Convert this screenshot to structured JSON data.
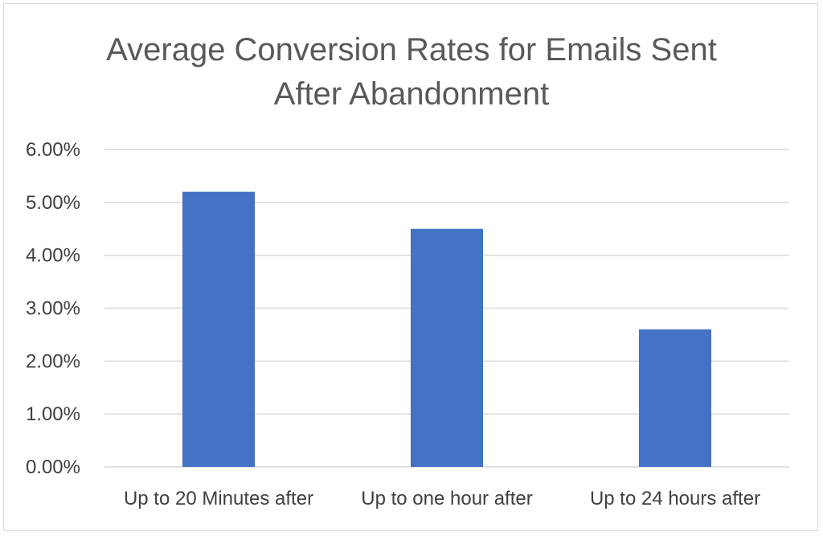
{
  "chart_data": {
    "type": "bar",
    "title_lines": [
      "Average Conversion Rates for Emails Sent",
      "After Abandonment"
    ],
    "xlabel": "",
    "ylabel": "",
    "categories": [
      "Up to 20 Minutes after",
      "Up to one hour after",
      "Up to 24 hours after"
    ],
    "values": [
      5.2,
      4.5,
      2.6
    ],
    "ylim": [
      0,
      6
    ],
    "yticks": [
      {
        "value": 0,
        "label": "0.00%"
      },
      {
        "value": 1,
        "label": "1.00%"
      },
      {
        "value": 2,
        "label": "2.00%"
      },
      {
        "value": 3,
        "label": "3.00%"
      },
      {
        "value": 4,
        "label": "4.00%"
      },
      {
        "value": 5,
        "label": "5.00%"
      },
      {
        "value": 6,
        "label": "6.00%"
      }
    ],
    "grid": true,
    "legend": "none",
    "bar_color": "#4472c4",
    "grid_color": "#d9d9d9"
  }
}
